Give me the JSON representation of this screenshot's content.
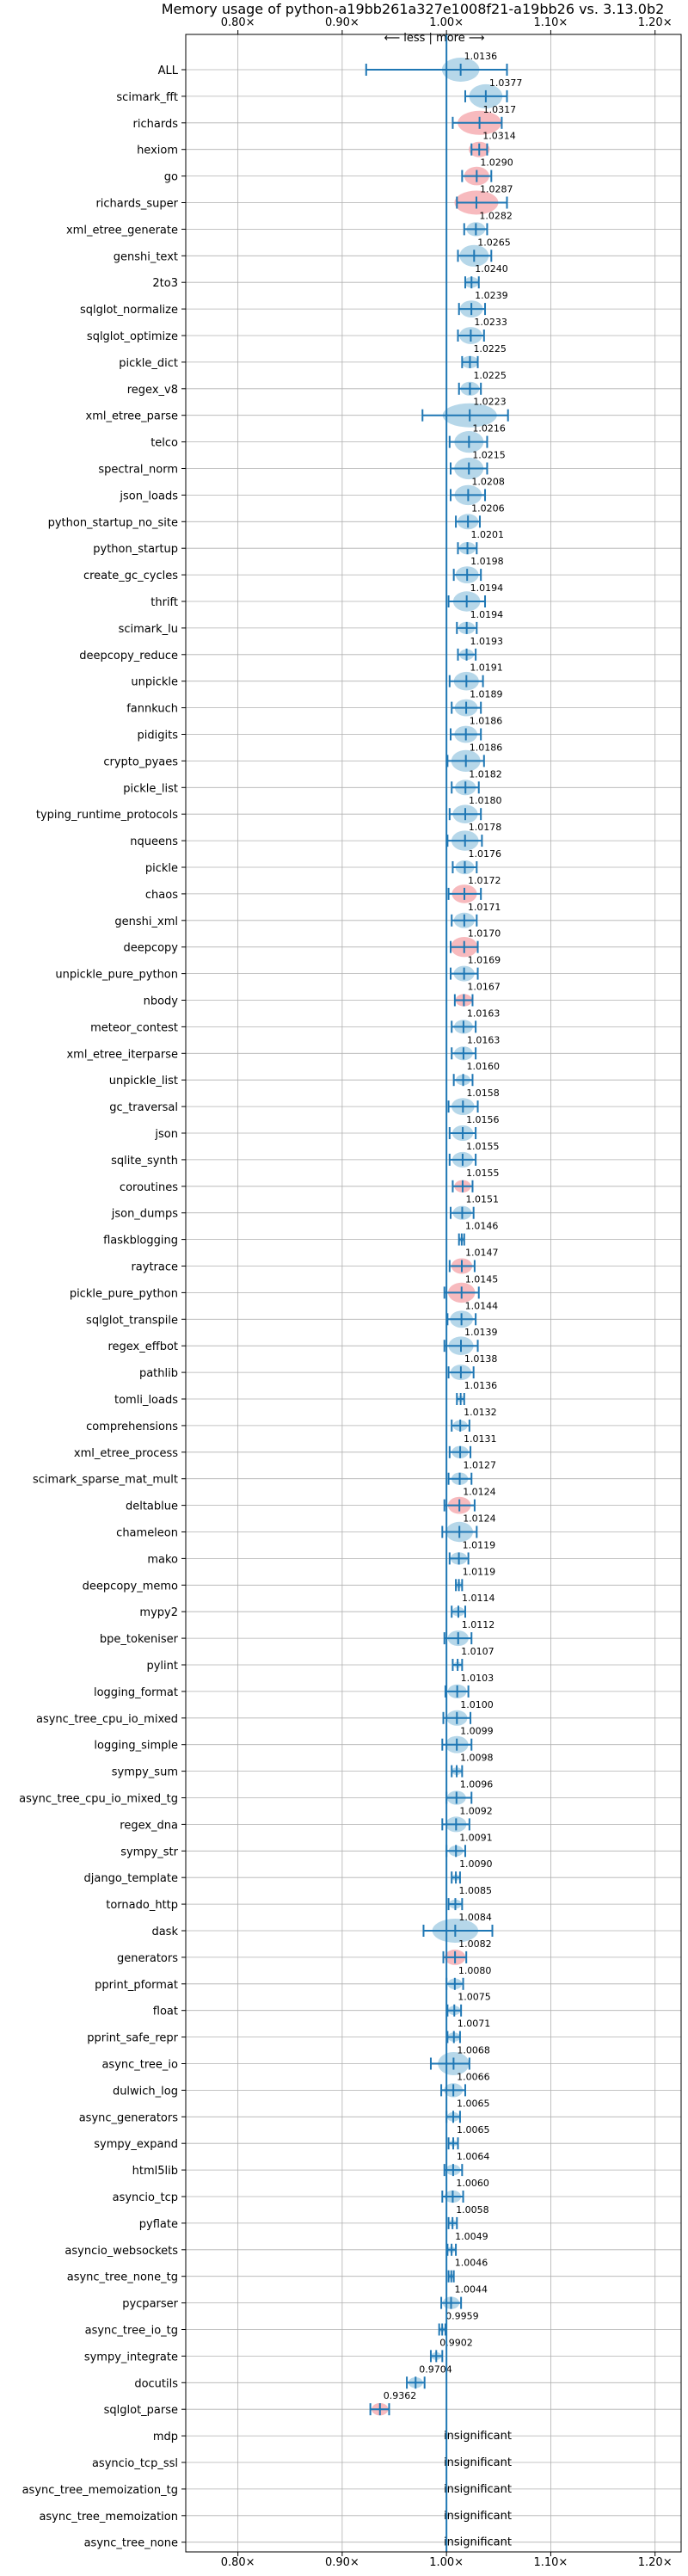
{
  "chart_data": {
    "type": "violin",
    "title": "Memory usage of python-a19bb261a327e1008f21-a19bb26 vs. 3.13.0b2",
    "direction_annotation": "⟵ less | more ⟶",
    "xlim": [
      0.75,
      1.225
    ],
    "xticks": [
      0.8,
      0.9,
      1.0,
      1.1,
      1.2
    ],
    "xtick_labels": [
      "0.80×",
      "0.90×",
      "1.00×",
      "1.10×",
      "1.20×"
    ],
    "grid": true,
    "colors": {
      "improvement": "#f4a3a8",
      "regression": "#9ecae1",
      "bar": "#1f77b4",
      "line": "#1f77b4",
      "grid": "#b0b0b0"
    },
    "insignificant_label": "insignificant",
    "benchmarks": [
      {
        "name": "ALL",
        "value": 1.0136,
        "label": "1.0136",
        "lo": 0.923,
        "hi": 1.058,
        "w": 0.018,
        "color": "regression"
      },
      {
        "name": "scimark_fft",
        "value": 1.0377,
        "label": "1.0377",
        "lo": 1.018,
        "hi": 1.058,
        "w": 0.016,
        "color": "regression"
      },
      {
        "name": "richards",
        "value": 1.0317,
        "label": "1.0317",
        "lo": 1.006,
        "hi": 1.053,
        "w": 0.021,
        "color": "improvement"
      },
      {
        "name": "hexiom",
        "value": 1.0314,
        "label": "1.0314",
        "lo": 1.024,
        "hi": 1.039,
        "w": 0.01,
        "color": "improvement"
      },
      {
        "name": "go",
        "value": 1.029,
        "label": "1.0290",
        "lo": 1.015,
        "hi": 1.043,
        "w": 0.012,
        "color": "improvement"
      },
      {
        "name": "richards_super",
        "value": 1.0287,
        "label": "1.0287",
        "lo": 1.01,
        "hi": 1.058,
        "w": 0.021,
        "color": "improvement"
      },
      {
        "name": "xml_etree_generate",
        "value": 1.0282,
        "label": "1.0282",
        "lo": 1.017,
        "hi": 1.039,
        "w": 0.009,
        "color": "regression"
      },
      {
        "name": "genshi_text",
        "value": 1.0265,
        "label": "1.0265",
        "lo": 1.011,
        "hi": 1.043,
        "w": 0.014,
        "color": "regression"
      },
      {
        "name": "2to3",
        "value": 1.024,
        "label": "1.0240",
        "lo": 1.018,
        "hi": 1.031,
        "w": 0.007,
        "color": "regression"
      },
      {
        "name": "sqlglot_normalize",
        "value": 1.0239,
        "label": "1.0239",
        "lo": 1.012,
        "hi": 1.037,
        "w": 0.011,
        "color": "regression"
      },
      {
        "name": "sqlglot_optimize",
        "value": 1.0233,
        "label": "1.0233",
        "lo": 1.011,
        "hi": 1.036,
        "w": 0.011,
        "color": "regression"
      },
      {
        "name": "pickle_dict",
        "value": 1.0225,
        "label": "1.0225",
        "lo": 1.015,
        "hi": 1.03,
        "w": 0.008,
        "color": "regression"
      },
      {
        "name": "regex_v8",
        "value": 1.0225,
        "label": "1.0225",
        "lo": 1.012,
        "hi": 1.033,
        "w": 0.009,
        "color": "regression"
      },
      {
        "name": "xml_etree_parse",
        "value": 1.0223,
        "label": "1.0223",
        "lo": 0.977,
        "hi": 1.059,
        "w": 0.026,
        "color": "regression"
      },
      {
        "name": "telco",
        "value": 1.0216,
        "label": "1.0216",
        "lo": 1.003,
        "hi": 1.039,
        "w": 0.014,
        "color": "regression"
      },
      {
        "name": "spectral_norm",
        "value": 1.0215,
        "label": "1.0215",
        "lo": 1.004,
        "hi": 1.039,
        "w": 0.014,
        "color": "regression"
      },
      {
        "name": "json_loads",
        "value": 1.0208,
        "label": "1.0208",
        "lo": 1.004,
        "hi": 1.037,
        "w": 0.013,
        "color": "regression"
      },
      {
        "name": "python_startup_no_site",
        "value": 1.0206,
        "label": "1.0206",
        "lo": 1.009,
        "hi": 1.032,
        "w": 0.01,
        "color": "regression"
      },
      {
        "name": "python_startup",
        "value": 1.0201,
        "label": "1.0201",
        "lo": 1.011,
        "hi": 1.029,
        "w": 0.008,
        "color": "regression"
      },
      {
        "name": "create_gc_cycles",
        "value": 1.0198,
        "label": "1.0198",
        "lo": 1.007,
        "hi": 1.033,
        "w": 0.011,
        "color": "regression"
      },
      {
        "name": "thrift",
        "value": 1.0194,
        "label": "1.0194",
        "lo": 1.002,
        "hi": 1.037,
        "w": 0.013,
        "color": "regression"
      },
      {
        "name": "scimark_lu",
        "value": 1.0194,
        "label": "1.0194",
        "lo": 1.01,
        "hi": 1.029,
        "w": 0.008,
        "color": "regression"
      },
      {
        "name": "deepcopy_reduce",
        "value": 1.0193,
        "label": "1.0193",
        "lo": 1.011,
        "hi": 1.028,
        "w": 0.007,
        "color": "regression"
      },
      {
        "name": "unpickle",
        "value": 1.0191,
        "label": "1.0191",
        "lo": 1.003,
        "hi": 1.035,
        "w": 0.012,
        "color": "regression"
      },
      {
        "name": "fannkuch",
        "value": 1.0189,
        "label": "1.0189",
        "lo": 1.005,
        "hi": 1.033,
        "w": 0.011,
        "color": "regression"
      },
      {
        "name": "pidigits",
        "value": 1.0186,
        "label": "1.0186",
        "lo": 1.004,
        "hi": 1.033,
        "w": 0.011,
        "color": "regression"
      },
      {
        "name": "crypto_pyaes",
        "value": 1.0186,
        "label": "1.0186",
        "lo": 1.001,
        "hi": 1.036,
        "w": 0.014,
        "color": "regression"
      },
      {
        "name": "pickle_list",
        "value": 1.0182,
        "label": "1.0182",
        "lo": 1.005,
        "hi": 1.031,
        "w": 0.01,
        "color": "regression"
      },
      {
        "name": "typing_runtime_protocols",
        "value": 1.018,
        "label": "1.0180",
        "lo": 1.003,
        "hi": 1.033,
        "w": 0.012,
        "color": "regression"
      },
      {
        "name": "nqueens",
        "value": 1.0178,
        "label": "1.0178",
        "lo": 1.001,
        "hi": 1.034,
        "w": 0.013,
        "color": "regression"
      },
      {
        "name": "pickle",
        "value": 1.0176,
        "label": "1.0176",
        "lo": 1.006,
        "hi": 1.029,
        "w": 0.009,
        "color": "regression"
      },
      {
        "name": "chaos",
        "value": 1.0172,
        "label": "1.0172",
        "lo": 1.002,
        "hi": 1.033,
        "w": 0.012,
        "color": "improvement"
      },
      {
        "name": "genshi_xml",
        "value": 1.0171,
        "label": "1.0171",
        "lo": 1.005,
        "hi": 1.029,
        "w": 0.01,
        "color": "regression"
      },
      {
        "name": "deepcopy",
        "value": 1.017,
        "label": "1.0170",
        "lo": 1.004,
        "hi": 1.03,
        "w": 0.013,
        "color": "improvement"
      },
      {
        "name": "unpickle_pure_python",
        "value": 1.0169,
        "label": "1.0169",
        "lo": 1.004,
        "hi": 1.03,
        "w": 0.01,
        "color": "regression"
      },
      {
        "name": "nbody",
        "value": 1.0167,
        "label": "1.0167",
        "lo": 1.008,
        "hi": 1.025,
        "w": 0.008,
        "color": "improvement"
      },
      {
        "name": "meteor_contest",
        "value": 1.0163,
        "label": "1.0163",
        "lo": 1.005,
        "hi": 1.028,
        "w": 0.009,
        "color": "regression"
      },
      {
        "name": "xml_etree_iterparse",
        "value": 1.0163,
        "label": "1.0163",
        "lo": 1.005,
        "hi": 1.028,
        "w": 0.009,
        "color": "regression"
      },
      {
        "name": "unpickle_list",
        "value": 1.016,
        "label": "1.0160",
        "lo": 1.007,
        "hi": 1.025,
        "w": 0.007,
        "color": "regression"
      },
      {
        "name": "gc_traversal",
        "value": 1.0158,
        "label": "1.0158",
        "lo": 1.002,
        "hi": 1.03,
        "w": 0.011,
        "color": "regression"
      },
      {
        "name": "json",
        "value": 1.0156,
        "label": "1.0156",
        "lo": 1.003,
        "hi": 1.028,
        "w": 0.01,
        "color": "regression"
      },
      {
        "name": "sqlite_synth",
        "value": 1.0155,
        "label": "1.0155",
        "lo": 1.003,
        "hi": 1.028,
        "w": 0.01,
        "color": "regression"
      },
      {
        "name": "coroutines",
        "value": 1.0155,
        "label": "1.0155",
        "lo": 1.006,
        "hi": 1.025,
        "w": 0.008,
        "color": "improvement"
      },
      {
        "name": "json_dumps",
        "value": 1.0151,
        "label": "1.0151",
        "lo": 1.004,
        "hi": 1.026,
        "w": 0.009,
        "color": "regression"
      },
      {
        "name": "flaskblogging",
        "value": 1.0146,
        "label": "1.0146",
        "lo": 1.012,
        "hi": 1.017,
        "w": 0.003,
        "color": "regression"
      },
      {
        "name": "raytrace",
        "value": 1.0147,
        "label": "1.0147",
        "lo": 1.003,
        "hi": 1.027,
        "w": 0.01,
        "color": "improvement"
      },
      {
        "name": "pickle_pure_python",
        "value": 1.0145,
        "label": "1.0145",
        "lo": 0.998,
        "hi": 1.031,
        "w": 0.013,
        "color": "improvement"
      },
      {
        "name": "sqlglot_transpile",
        "value": 1.0144,
        "label": "1.0144",
        "lo": 1.001,
        "hi": 1.028,
        "w": 0.011,
        "color": "regression"
      },
      {
        "name": "regex_effbot",
        "value": 1.0139,
        "label": "1.0139",
        "lo": 0.998,
        "hi": 1.03,
        "w": 0.012,
        "color": "regression"
      },
      {
        "name": "pathlib",
        "value": 1.0138,
        "label": "1.0138",
        "lo": 1.002,
        "hi": 1.026,
        "w": 0.01,
        "color": "regression"
      },
      {
        "name": "tomli_loads",
        "value": 1.0136,
        "label": "1.0136",
        "lo": 1.01,
        "hi": 1.017,
        "w": 0.004,
        "color": "regression"
      },
      {
        "name": "comprehensions",
        "value": 1.0132,
        "label": "1.0132",
        "lo": 1.005,
        "hi": 1.022,
        "w": 0.007,
        "color": "regression"
      },
      {
        "name": "xml_etree_process",
        "value": 1.0131,
        "label": "1.0131",
        "lo": 1.003,
        "hi": 1.023,
        "w": 0.008,
        "color": "regression"
      },
      {
        "name": "scimark_sparse_mat_mult",
        "value": 1.0127,
        "label": "1.0127",
        "lo": 1.002,
        "hi": 1.024,
        "w": 0.008,
        "color": "regression"
      },
      {
        "name": "deltablue",
        "value": 1.0124,
        "label": "1.0124",
        "lo": 0.998,
        "hi": 1.027,
        "w": 0.011,
        "color": "improvement"
      },
      {
        "name": "chameleon",
        "value": 1.0124,
        "label": "1.0124",
        "lo": 0.996,
        "hi": 1.029,
        "w": 0.013,
        "color": "regression"
      },
      {
        "name": "mako",
        "value": 1.0119,
        "label": "1.0119",
        "lo": 1.003,
        "hi": 1.021,
        "w": 0.008,
        "color": "regression"
      },
      {
        "name": "deepcopy_memo",
        "value": 1.0119,
        "label": "1.0119",
        "lo": 1.009,
        "hi": 1.015,
        "w": 0.004,
        "color": "regression"
      },
      {
        "name": "mypy2",
        "value": 1.0114,
        "label": "1.0114",
        "lo": 1.005,
        "hi": 1.018,
        "w": 0.006,
        "color": "regression"
      },
      {
        "name": "bpe_tokeniser",
        "value": 1.0112,
        "label": "1.0112",
        "lo": 0.998,
        "hi": 1.024,
        "w": 0.01,
        "color": "regression"
      },
      {
        "name": "pylint",
        "value": 1.0107,
        "label": "1.0107",
        "lo": 1.006,
        "hi": 1.015,
        "w": 0.004,
        "color": "regression"
      },
      {
        "name": "logging_format",
        "value": 1.0103,
        "label": "1.0103",
        "lo": 0.999,
        "hi": 1.021,
        "w": 0.009,
        "color": "regression"
      },
      {
        "name": "async_tree_cpu_io_mixed",
        "value": 1.01,
        "label": "1.0100",
        "lo": 0.997,
        "hi": 1.023,
        "w": 0.01,
        "color": "regression"
      },
      {
        "name": "logging_simple",
        "value": 1.0099,
        "label": "1.0099",
        "lo": 0.996,
        "hi": 1.024,
        "w": 0.011,
        "color": "regression"
      },
      {
        "name": "sympy_sum",
        "value": 1.0098,
        "label": "1.0098",
        "lo": 1.005,
        "hi": 1.015,
        "w": 0.005,
        "color": "regression"
      },
      {
        "name": "async_tree_cpu_io_mixed_tg",
        "value": 1.0096,
        "label": "1.0096",
        "lo": 1.0,
        "hi": 1.024,
        "w": 0.009,
        "color": "regression"
      },
      {
        "name": "regex_dna",
        "value": 1.0092,
        "label": "1.0092",
        "lo": 0.996,
        "hi": 1.022,
        "w": 0.01,
        "color": "regression"
      },
      {
        "name": "sympy_str",
        "value": 1.0091,
        "label": "1.0091",
        "lo": 1.0,
        "hi": 1.018,
        "w": 0.007,
        "color": "regression"
      },
      {
        "name": "django_template",
        "value": 1.009,
        "label": "1.0090",
        "lo": 1.005,
        "hi": 1.013,
        "w": 0.004,
        "color": "regression"
      },
      {
        "name": "tornado_http",
        "value": 1.0085,
        "label": "1.0085",
        "lo": 1.002,
        "hi": 1.015,
        "w": 0.006,
        "color": "regression"
      },
      {
        "name": "dask",
        "value": 1.0084,
        "label": "1.0084",
        "lo": 0.978,
        "hi": 1.044,
        "w": 0.022,
        "color": "regression"
      },
      {
        "name": "generators",
        "value": 1.0082,
        "label": "1.0082",
        "lo": 0.997,
        "hi": 1.019,
        "w": 0.01,
        "color": "improvement"
      },
      {
        "name": "pprint_pformat",
        "value": 1.008,
        "label": "1.0080",
        "lo": 1.0,
        "hi": 1.016,
        "w": 0.007,
        "color": "regression"
      },
      {
        "name": "float",
        "value": 1.0075,
        "label": "1.0075",
        "lo": 1.001,
        "hi": 1.014,
        "w": 0.006,
        "color": "regression"
      },
      {
        "name": "pprint_safe_repr",
        "value": 1.0071,
        "label": "1.0071",
        "lo": 1.001,
        "hi": 1.013,
        "w": 0.006,
        "color": "regression"
      },
      {
        "name": "async_tree_io",
        "value": 1.0068,
        "label": "1.0068",
        "lo": 0.985,
        "hi": 1.022,
        "w": 0.015,
        "color": "regression"
      },
      {
        "name": "dulwich_log",
        "value": 1.0066,
        "label": "1.0066",
        "lo": 0.995,
        "hi": 1.018,
        "w": 0.009,
        "color": "regression"
      },
      {
        "name": "async_generators",
        "value": 1.0065,
        "label": "1.0065",
        "lo": 1.0,
        "hi": 1.013,
        "w": 0.006,
        "color": "regression"
      },
      {
        "name": "sympy_expand",
        "value": 1.0065,
        "label": "1.0065",
        "lo": 1.002,
        "hi": 1.011,
        "w": 0.004,
        "color": "regression"
      },
      {
        "name": "html5lib",
        "value": 1.0064,
        "label": "1.0064",
        "lo": 0.998,
        "hi": 1.015,
        "w": 0.007,
        "color": "regression"
      },
      {
        "name": "asyncio_tcp",
        "value": 1.006,
        "label": "1.0060",
        "lo": 0.996,
        "hi": 1.016,
        "w": 0.008,
        "color": "regression"
      },
      {
        "name": "pyflate",
        "value": 1.0058,
        "label": "1.0058",
        "lo": 1.002,
        "hi": 1.01,
        "w": 0.004,
        "color": "regression"
      },
      {
        "name": "asyncio_websockets",
        "value": 1.0049,
        "label": "1.0049",
        "lo": 1.001,
        "hi": 1.009,
        "w": 0.004,
        "color": "regression"
      },
      {
        "name": "async_tree_none_tg",
        "value": 1.0046,
        "label": "1.0046",
        "lo": 1.002,
        "hi": 1.007,
        "w": 0.003,
        "color": "regression"
      },
      {
        "name": "pycparser",
        "value": 1.0044,
        "label": "1.0044",
        "lo": 0.995,
        "hi": 1.014,
        "w": 0.008,
        "color": "regression"
      },
      {
        "name": "async_tree_io_tg",
        "value": 0.9959,
        "label": "0.9959",
        "lo": 0.993,
        "hi": 0.999,
        "w": 0.003,
        "color": "regression"
      },
      {
        "name": "sympy_integrate",
        "value": 0.9902,
        "label": "0.9902",
        "lo": 0.985,
        "hi": 0.996,
        "w": 0.005,
        "color": "regression"
      },
      {
        "name": "docutils",
        "value": 0.9704,
        "label": "0.9704",
        "lo": 0.962,
        "hi": 0.979,
        "w": 0.007,
        "color": "regression"
      },
      {
        "name": "sqlglot_parse",
        "value": 0.9362,
        "label": "0.9362",
        "lo": 0.927,
        "hi": 0.945,
        "w": 0.008,
        "color": "improvement"
      },
      {
        "name": "mdp",
        "value": null,
        "label": "",
        "insignificant": true
      },
      {
        "name": "asyncio_tcp_ssl",
        "value": null,
        "label": "",
        "insignificant": true
      },
      {
        "name": "async_tree_memoization_tg",
        "value": null,
        "label": "",
        "insignificant": true
      },
      {
        "name": "async_tree_memoization",
        "value": null,
        "label": "",
        "insignificant": true
      },
      {
        "name": "async_tree_none",
        "value": null,
        "label": "",
        "insignificant": true
      }
    ]
  }
}
